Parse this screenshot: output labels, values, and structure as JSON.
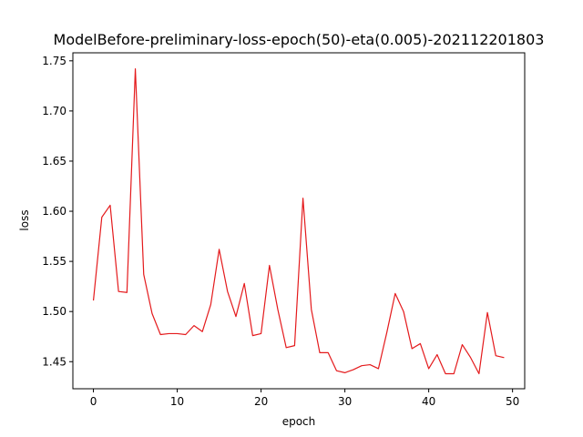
{
  "chart_data": {
    "type": "line",
    "title": "ModelBefore-preliminary-loss-epoch(50)-eta(0.005)-202112201803",
    "xlabel": "epoch",
    "ylabel": "loss",
    "xlim": [
      -2.45,
      51.45
    ],
    "ylim": [
      1.423,
      1.758
    ],
    "xticks": [
      0,
      10,
      20,
      30,
      40,
      50
    ],
    "yticks": [
      1.45,
      1.5,
      1.55,
      1.6,
      1.65,
      1.7,
      1.75
    ],
    "ytick_labels": [
      "1.45",
      "1.50",
      "1.55",
      "1.60",
      "1.65",
      "1.70",
      "1.75"
    ],
    "grid": false,
    "line_color": "#e41a1c",
    "series": [
      {
        "x": [
          0,
          1,
          2,
          3,
          4,
          5,
          6,
          7,
          8,
          9,
          10,
          11,
          12,
          13,
          14,
          15,
          16,
          17,
          18,
          19,
          20,
          21,
          22,
          23,
          24,
          25,
          26,
          27,
          28,
          29,
          30,
          31,
          32,
          33,
          34,
          35,
          36,
          37,
          38,
          39,
          40,
          41,
          42,
          43,
          44,
          45,
          46,
          47,
          48,
          49
        ],
        "values": [
          1.511,
          1.594,
          1.606,
          1.52,
          1.519,
          1.742,
          1.537,
          1.498,
          1.477,
          1.478,
          1.478,
          1.477,
          1.486,
          1.48,
          1.507,
          1.562,
          1.52,
          1.495,
          1.528,
          1.476,
          1.478,
          1.546,
          1.502,
          1.464,
          1.466,
          1.613,
          1.502,
          1.459,
          1.459,
          1.441,
          1.439,
          1.442,
          1.446,
          1.447,
          1.443,
          1.479,
          1.518,
          1.5,
          1.463,
          1.468,
          1.443,
          1.457,
          1.438,
          1.438,
          1.467,
          1.454,
          1.438,
          1.499,
          1.456,
          1.454
        ]
      }
    ]
  }
}
